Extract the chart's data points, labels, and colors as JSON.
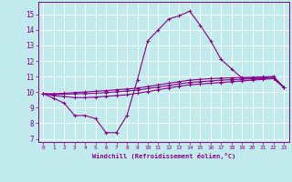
{
  "xlabel": "Windchill (Refroidissement éolien,°C)",
  "xlim": [
    -0.5,
    23.5
  ],
  "ylim": [
    6.8,
    15.8
  ],
  "xticks": [
    0,
    1,
    2,
    3,
    4,
    5,
    6,
    7,
    8,
    9,
    10,
    11,
    12,
    13,
    14,
    15,
    16,
    17,
    18,
    19,
    20,
    21,
    22,
    23
  ],
  "yticks": [
    7,
    8,
    9,
    10,
    11,
    12,
    13,
    14,
    15
  ],
  "bg_color": "#c0eaec",
  "line_color": "#880088",
  "grid_color": "#ffffff",
  "series": [
    [
      9.9,
      9.6,
      9.3,
      8.5,
      8.5,
      8.3,
      7.4,
      7.4,
      8.5,
      10.8,
      13.3,
      14.0,
      14.7,
      14.9,
      15.2,
      14.3,
      13.3,
      12.1,
      11.5,
      10.9,
      10.9,
      10.9,
      11.0,
      10.3
    ],
    [
      9.9,
      9.78,
      9.72,
      9.65,
      9.65,
      9.68,
      9.73,
      9.78,
      9.83,
      9.93,
      10.03,
      10.15,
      10.27,
      10.38,
      10.47,
      10.52,
      10.57,
      10.62,
      10.67,
      10.72,
      10.77,
      10.82,
      10.87,
      10.3
    ],
    [
      9.9,
      9.85,
      9.87,
      9.89,
      9.91,
      9.93,
      9.97,
      10.02,
      10.07,
      10.13,
      10.23,
      10.33,
      10.43,
      10.53,
      10.62,
      10.67,
      10.72,
      10.77,
      10.8,
      10.83,
      10.86,
      10.88,
      10.9,
      10.3
    ],
    [
      9.9,
      9.9,
      9.93,
      9.97,
      10.01,
      10.05,
      10.1,
      10.15,
      10.2,
      10.26,
      10.36,
      10.47,
      10.57,
      10.67,
      10.77,
      10.82,
      10.87,
      10.9,
      10.92,
      10.94,
      10.96,
      10.98,
      11.0,
      10.3
    ]
  ]
}
